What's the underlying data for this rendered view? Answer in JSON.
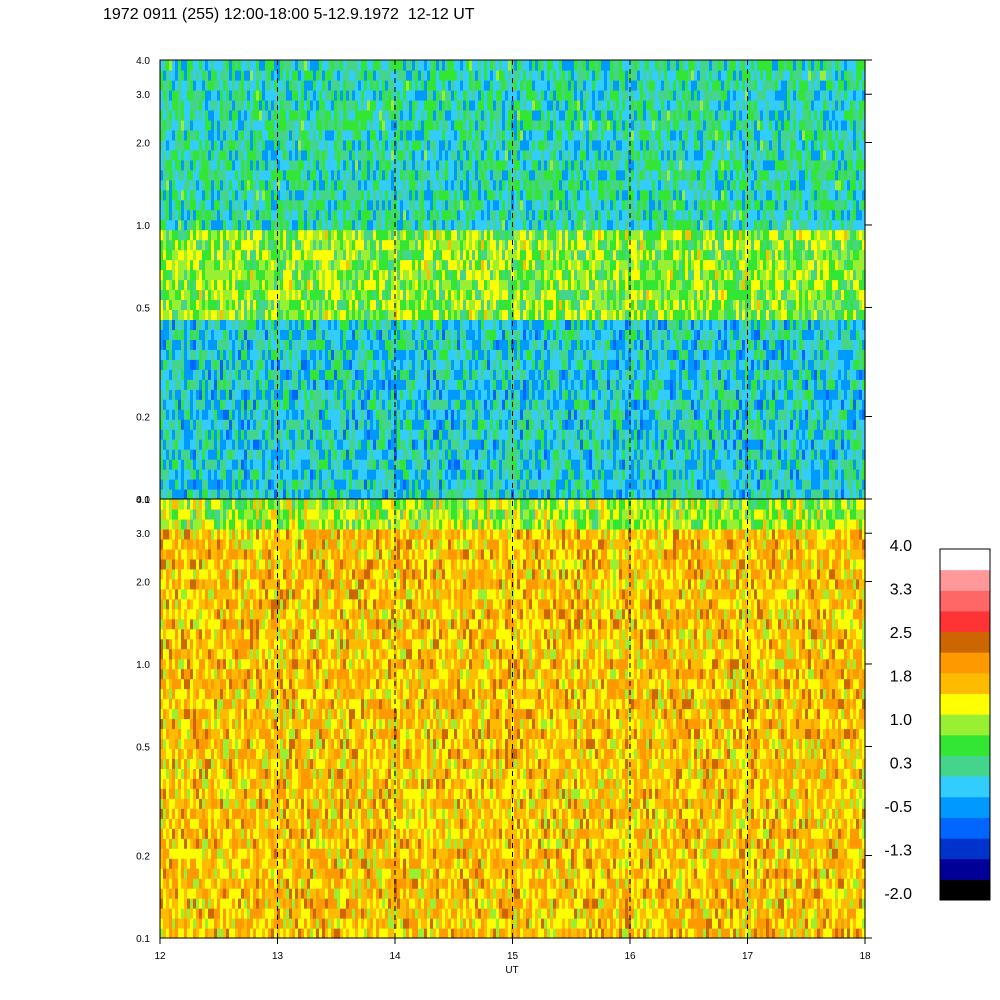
{
  "title": "1972 0911 (255) 12:00-18:00 5-12.9.1972  12-12 UT",
  "chart_data": {
    "type": "heatmap",
    "xlabel": "UT",
    "x_ticks": [
      "12",
      "13",
      "14",
      "15",
      "16",
      "17",
      "18"
    ],
    "xlim": [
      12,
      18
    ],
    "y_scale": "log",
    "ylim": [
      0.1,
      4.0
    ],
    "y_ticks": [
      {
        "value": 0.1,
        "label": "0.1"
      },
      {
        "value": 0.2,
        "label": "0.2"
      },
      {
        "value": 0.5,
        "label": "0.5"
      },
      {
        "value": 1.0,
        "label": "1.0"
      },
      {
        "value": 2.0,
        "label": "2.0"
      },
      {
        "value": 3.0,
        "label": "3.0"
      },
      {
        "value": 4.0,
        "label": "4.0"
      }
    ],
    "dashed_lines_x": [
      13,
      14,
      15,
      16,
      17
    ],
    "colorbar": {
      "range": [
        -2.0,
        4.0
      ],
      "labels": [
        "4.0",
        "3.3",
        "2.5",
        "1.8",
        "1.0",
        "0.3",
        "-0.5",
        "-1.3",
        "-2.0"
      ],
      "colors": [
        "#000000",
        "#000099",
        "#0033cc",
        "#0066ff",
        "#0099ff",
        "#33ccff",
        "#44d48c",
        "#33e633",
        "#99f033",
        "#ffff00",
        "#ffbb00",
        "#ff9900",
        "#cc6600",
        "#ff3333",
        "#ff6666",
        "#ff9999",
        "#ffffff"
      ]
    },
    "panels": [
      {
        "name": "upper",
        "regions": [
          {
            "y_range": [
              1.0,
              4.0
            ],
            "level": 0.2
          },
          {
            "y_range": [
              0.45,
              1.0
            ],
            "level": 0.9
          },
          {
            "y_range": [
              0.1,
              0.45
            ],
            "level": 0.0
          }
        ]
      },
      {
        "name": "lower",
        "regions": [
          {
            "y_range": [
              3.0,
              4.0
            ],
            "level": 1.0
          },
          {
            "y_range": [
              0.1,
              3.0
            ],
            "level": 1.7
          }
        ]
      }
    ]
  }
}
